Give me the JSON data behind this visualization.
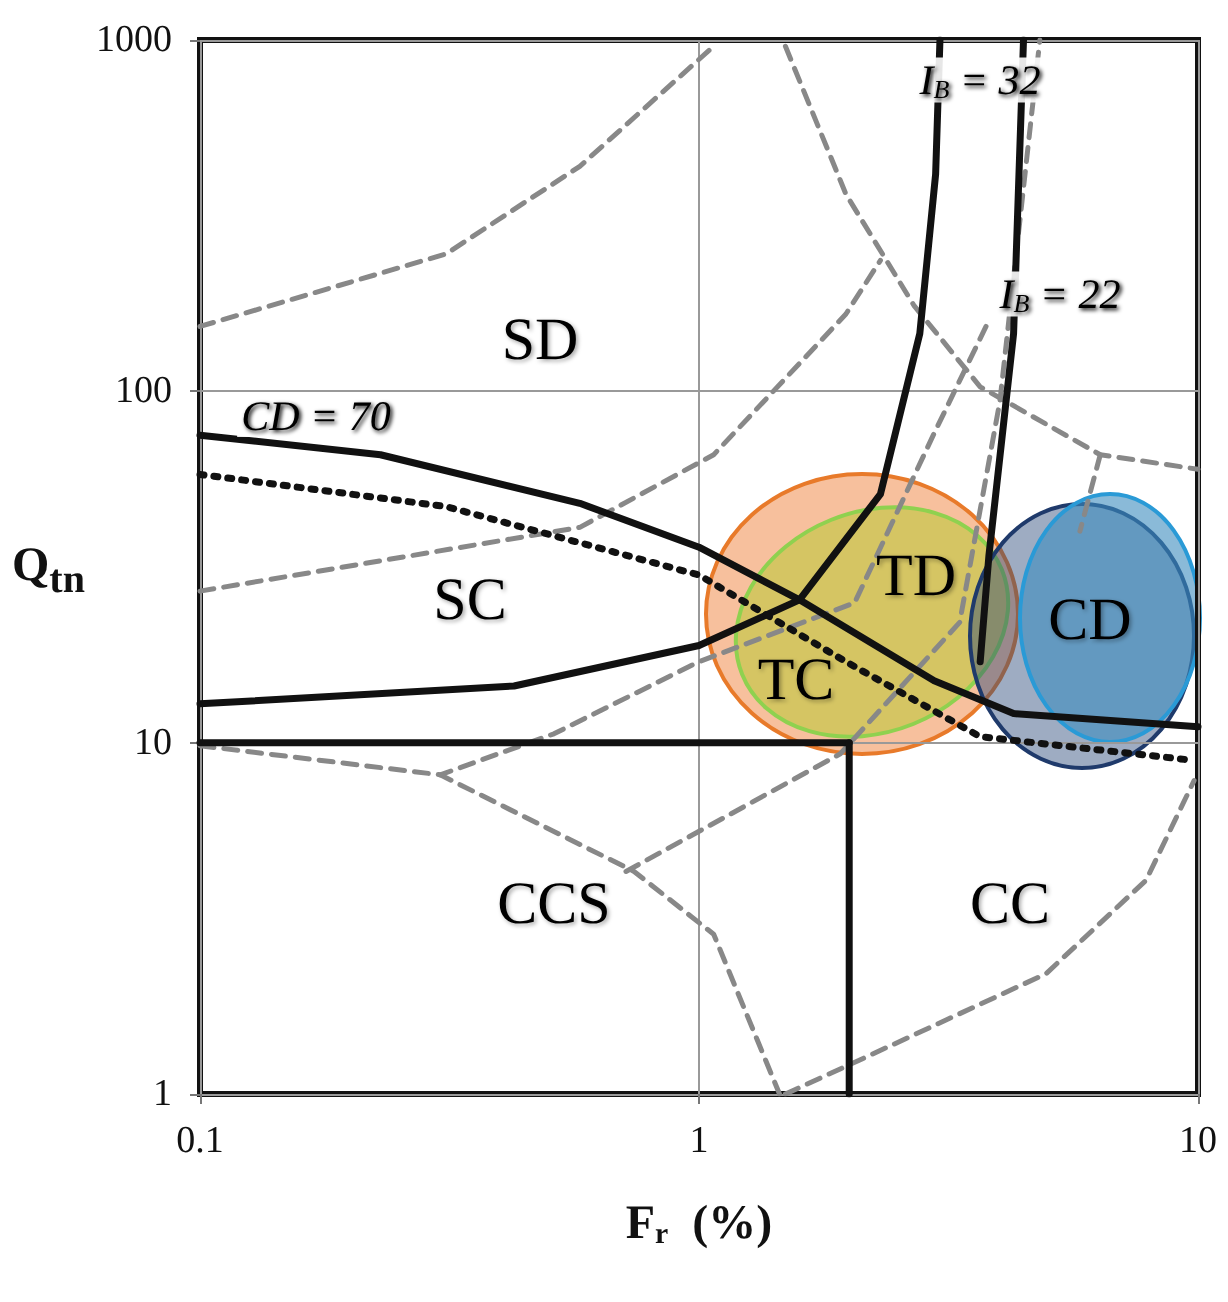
{
  "chart_data": {
    "type": "line",
    "xlabel": "F$_{r}$  (%)",
    "ylabel": "Q$_{tn}$",
    "log": "xy",
    "xlim": [
      0.1,
      10
    ],
    "xticks": [
      0.1,
      1,
      10
    ],
    "ylim": [
      1,
      1000
    ],
    "yticks": [
      1,
      10,
      100,
      1000
    ],
    "grid": true,
    "marker": "none",
    "series": [
      {
        "color": "#111111",
        "line_style": "solid",
        "x": [
          0.1,
          0.23,
          0.577,
          1.0,
          1.59,
          2.96,
          4.27,
          10
        ],
        "values": [
          75,
          66,
          48,
          36,
          25.5,
          15,
          12.1,
          11.1
        ]
      },
      {
        "color": "#111111",
        "line_style": "solid",
        "x": [
          0.1,
          0.426,
          1.0,
          1.59,
          2.31,
          2.77,
          2.98,
          3.04
        ],
        "values": [
          12.9,
          14.5,
          18.9,
          25.5,
          51,
          146,
          415,
          1000
        ]
      },
      {
        "color": "#111111",
        "line_style": "solid",
        "x": [
          3.66,
          3.81,
          4.27,
          4.47
        ],
        "values": [
          17,
          34,
          146,
          1000
        ]
      },
      {
        "color": "#111111",
        "line_style": "solid",
        "x": [
          0.1,
          2
        ],
        "values": [
          10,
          10
        ]
      },
      {
        "color": "#111111",
        "line_style": "solid",
        "x": [
          2,
          2
        ],
        "values": [
          1,
          10
        ]
      },
      {
        "color": "#111111",
        "line_style": "dotted",
        "x": [
          0.1,
          0.311,
          1.0,
          1.97,
          3.66,
          9.82
        ],
        "values": [
          58,
          47,
          30,
          17,
          10.4,
          8.9
        ]
      },
      {
        "color": "#888888",
        "line_style": "dashed",
        "x": [
          0.1,
          0.311,
          0.577,
          1.07
        ],
        "values": [
          153,
          246,
          437,
          960
        ]
      },
      {
        "color": "#888888",
        "line_style": "dashed",
        "x": [
          0.1,
          0.577,
          1.07,
          1.97,
          2.31
        ],
        "values": [
          27,
          41,
          66,
          166,
          236
        ]
      },
      {
        "color": "#888888",
        "line_style": "dashed",
        "x": [
          1.49,
          1.97,
          2.7,
          3.66,
          6.37,
          10
        ],
        "values": [
          960,
          364,
          175,
          103,
          66,
          60
        ]
      },
      {
        "color": "#888888",
        "line_style": "dashed",
        "x": [
          3.76,
          2.96,
          2.05,
          1.0,
          0.512,
          0.303
        ],
        "values": [
          153,
          76,
          25,
          17,
          10.6,
          8.1
        ]
      },
      {
        "color": "#888888",
        "line_style": "dashed",
        "x": [
          0.1,
          0.303,
          0.741,
          1.07,
          1.45
        ],
        "values": [
          9.8,
          8.1,
          4.3,
          2.85,
          1
        ]
      },
      {
        "color": "#888888",
        "line_style": "dashed",
        "x": [
          0.714,
          1.92,
          3.33,
          4.01,
          4.82
        ],
        "values": [
          4.3,
          9.3,
          22,
          94,
          1000
        ]
      },
      {
        "color": "#888888",
        "line_style": "dashed",
        "x": [
          1.49,
          2.1,
          4.96,
          7.87,
          9.82
        ],
        "values": [
          1,
          1.25,
          2.2,
          4.06,
          7.8
        ]
      },
      {
        "color": "#888888",
        "line_style": "dashed",
        "x": [
          6.37,
          5.8
        ],
        "values": [
          66,
          40
        ]
      }
    ],
    "annotations": [
      "CD = 70",
      "I$_{B}$ = 32",
      "I$_{B}$ = 22",
      "SD",
      "SC",
      "CCS",
      "CC",
      "TD",
      "TC",
      "CD"
    ]
  }
}
